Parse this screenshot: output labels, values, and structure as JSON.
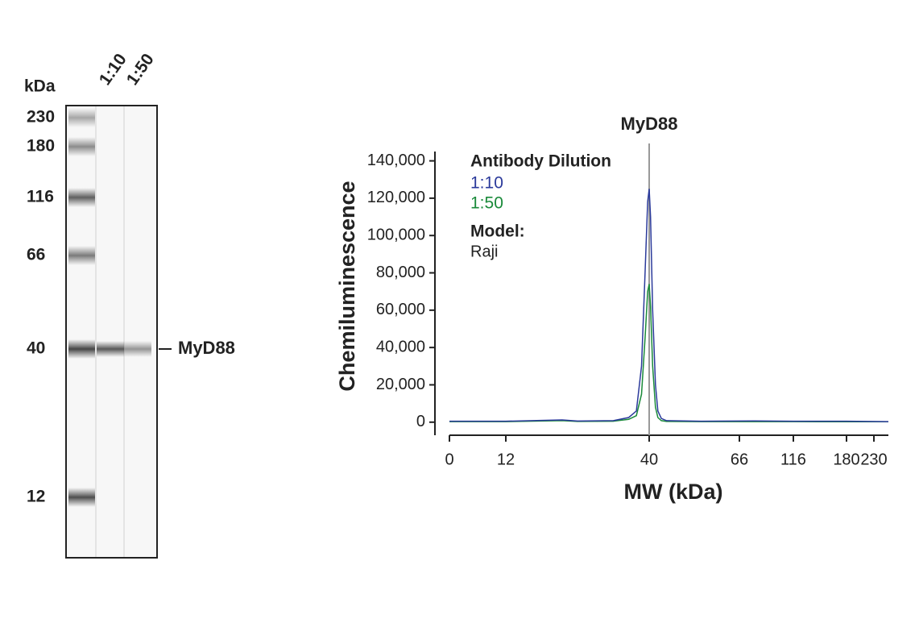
{
  "blot": {
    "kda_label": "kDa",
    "markers": [
      230,
      180,
      116,
      66,
      40,
      12
    ],
    "lanes": [
      "1:10",
      "1:50"
    ],
    "band_label": "MyD88"
  },
  "chart_data": {
    "type": "line",
    "title": "MyD88",
    "marker_x": 40,
    "xlabel": "MW (kDa)",
    "ylabel": "Chemiluminescence",
    "legend_title": "Antibody Dilution",
    "annotations": [
      "Model:",
      "Raji"
    ],
    "x": [
      0,
      12,
      23,
      26,
      33,
      36,
      37.5,
      38.5,
      39.2,
      39.7,
      40,
      40.4,
      41,
      41.8,
      42.5,
      43.5,
      45,
      55,
      80,
      116,
      180,
      250
    ],
    "series": [
      {
        "name": "1:10",
        "color": "#2b3a9b",
        "values": [
          500,
          500,
          1200,
          600,
          800,
          2500,
          6000,
          30000,
          80000,
          118000,
          125000,
          110000,
          60000,
          20000,
          6000,
          2000,
          800,
          500,
          700,
          500,
          500,
          300
        ]
      },
      {
        "name": "1:50",
        "color": "#1a8a3a",
        "values": [
          300,
          300,
          800,
          400,
          500,
          1500,
          3500,
          15000,
          45000,
          70000,
          74000,
          62000,
          30000,
          8000,
          2500,
          800,
          400,
          300,
          300,
          300,
          200,
          200
        ]
      }
    ],
    "xlim": [
      0,
      250
    ],
    "xticks": [
      0,
      12,
      40,
      66,
      116,
      180,
      230
    ],
    "ylim": [
      -7000,
      145000
    ],
    "yticks": [
      0,
      {
        "value": 20000,
        "label": "20,000"
      },
      {
        "value": 40000,
        "label": "40,000"
      },
      {
        "value": 60000,
        "label": "60,000"
      },
      {
        "value": 80000,
        "label": "80,000"
      },
      {
        "value": 100000,
        "label": "100,000"
      },
      {
        "value": 120000,
        "label": "120,000"
      },
      {
        "value": 140000,
        "label": "140,000"
      }
    ]
  }
}
